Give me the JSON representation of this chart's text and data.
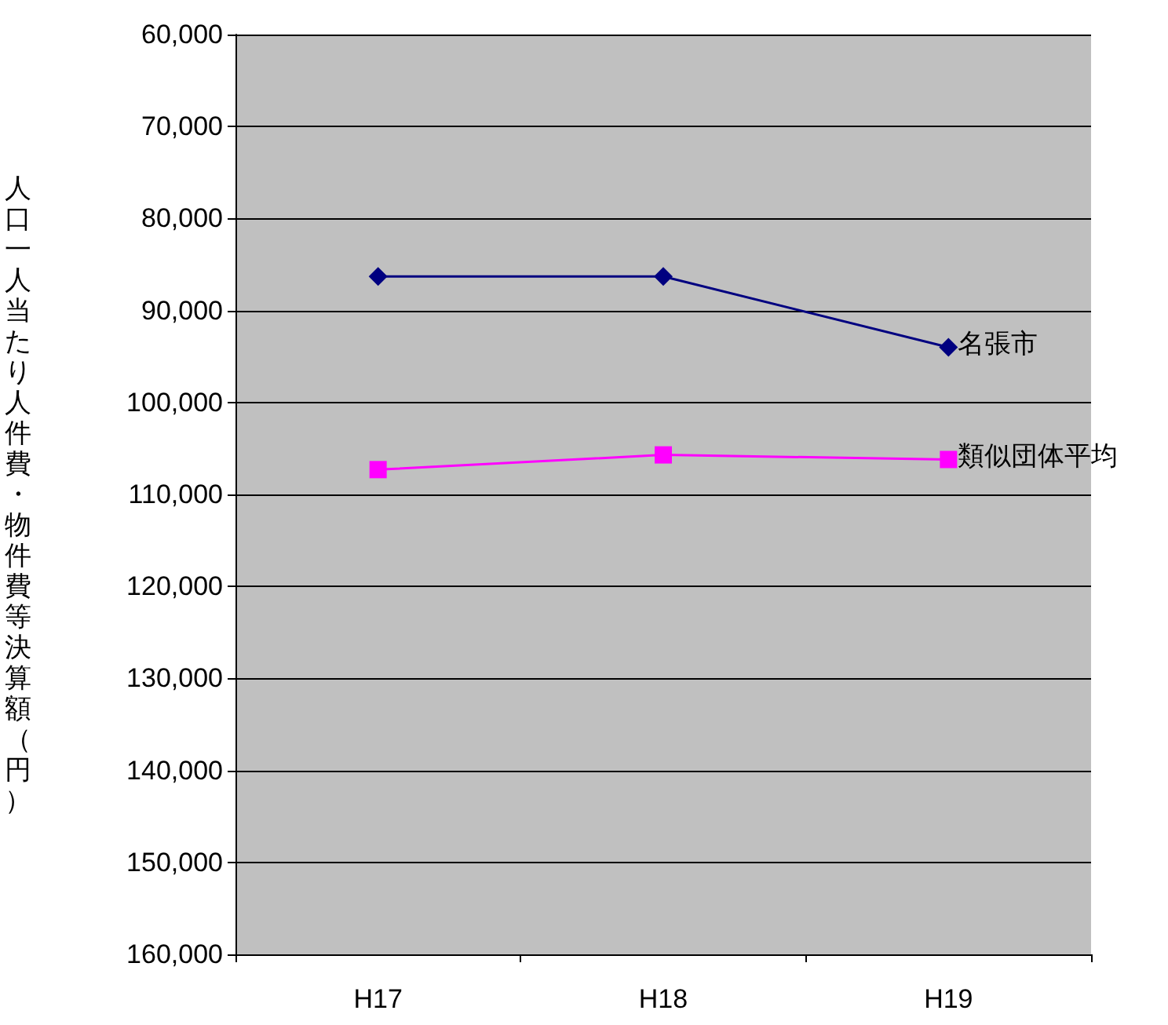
{
  "chart_data": {
    "type": "line",
    "ylabel": "人口一人当たり人件費・物件費等決算額（円）",
    "categories": [
      "H17",
      "H18",
      "H19"
    ],
    "series": [
      {
        "name": "名張市",
        "color": "#000080",
        "marker": "diamond",
        "values": [
          86300,
          86300,
          94000
        ]
      },
      {
        "name": "類似団体平均",
        "color": "#ff00ff",
        "marker": "square",
        "values": [
          107300,
          105700,
          106200
        ]
      }
    ],
    "ylim": [
      160000,
      60000
    ],
    "yticks": [
      {
        "value": 60000,
        "label": "60,000"
      },
      {
        "value": 70000,
        "label": "70,000"
      },
      {
        "value": 80000,
        "label": "80,000"
      },
      {
        "value": 90000,
        "label": "90,000"
      },
      {
        "value": 100000,
        "label": "100,000"
      },
      {
        "value": 110000,
        "label": "110,000"
      },
      {
        "value": 120000,
        "label": "120,000"
      },
      {
        "value": 130000,
        "label": "130,000"
      },
      {
        "value": 140000,
        "label": "140,000"
      },
      {
        "value": 150000,
        "label": "150,000"
      },
      {
        "value": 160000,
        "label": "160,000"
      }
    ],
    "grid": "y",
    "legend": false
  }
}
